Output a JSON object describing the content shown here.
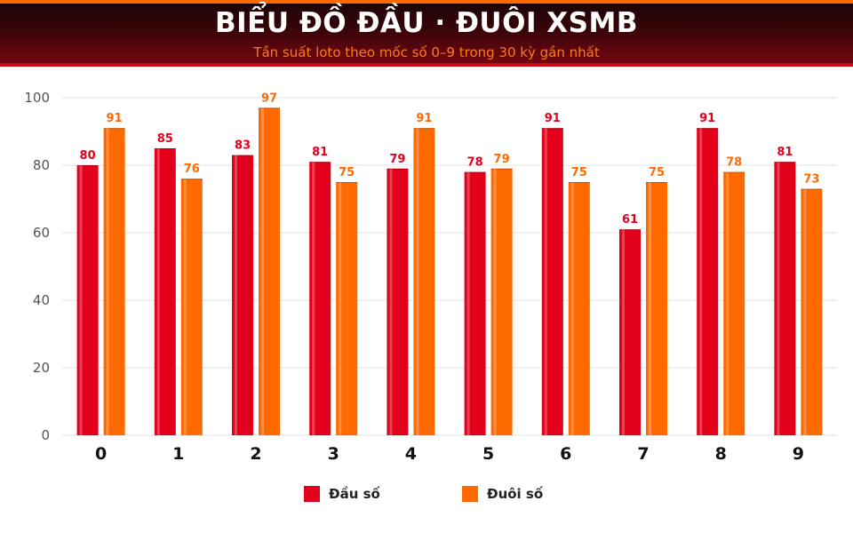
{
  "header": {
    "title": "BIỂU ĐỒ ĐẦU · ĐUÔI XSMB",
    "subtitle": "Tần suất loto theo mốc số 0–9 trong 30 kỳ gần nhất"
  },
  "colors": {
    "dau": "#e3001b",
    "duoi": "#ff6a00",
    "grid": "#e2e2e2",
    "axis_text": "#555555",
    "category_text": "#111111"
  },
  "chart_data": {
    "type": "bar",
    "categories": [
      "0",
      "1",
      "2",
      "3",
      "4",
      "5",
      "6",
      "7",
      "8",
      "9"
    ],
    "series": [
      {
        "name": "Đầu số",
        "values": [
          80,
          85,
          83,
          81,
          79,
          78,
          91,
          61,
          91,
          81
        ]
      },
      {
        "name": "Đuôi số",
        "values": [
          91,
          76,
          97,
          75,
          91,
          79,
          75,
          75,
          78,
          73
        ]
      }
    ],
    "ylim": [
      0,
      100
    ],
    "yticks": [
      0,
      20,
      40,
      60,
      80,
      100
    ],
    "grid": true,
    "legend": "bottom-center"
  }
}
